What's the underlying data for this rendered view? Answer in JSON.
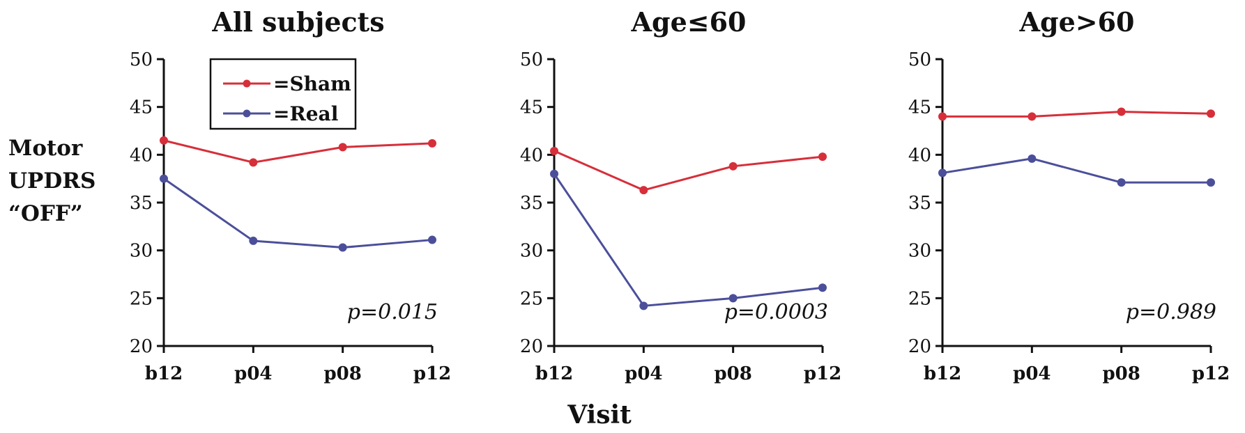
{
  "figure": {
    "ylabel_lines": [
      "Motor",
      "UPDRS",
      "“OFF”"
    ],
    "xlabel": "Visit"
  },
  "legend": [
    {
      "label": "=Sham",
      "color": "#d62f3a"
    },
    {
      "label": "=Real",
      "color": "#4b4f9a"
    }
  ],
  "chart_data": [
    {
      "type": "line",
      "title": "All subjects",
      "categories": [
        "b12",
        "p04",
        "p08",
        "p12"
      ],
      "ylim": [
        20,
        50
      ],
      "yticks": [
        20,
        25,
        30,
        35,
        40,
        45,
        50
      ],
      "annotation": "p=0.015",
      "series": [
        {
          "name": "=Sham",
          "color": "#d62f3a",
          "values": [
            41.5,
            39.2,
            40.8,
            41.2
          ]
        },
        {
          "name": "=Real",
          "color": "#4b4f9a",
          "values": [
            37.5,
            31.0,
            30.3,
            31.1
          ]
        }
      ]
    },
    {
      "type": "line",
      "title": "Age≤60",
      "categories": [
        "b12",
        "p04",
        "p08",
        "p12"
      ],
      "ylim": [
        20,
        50
      ],
      "yticks": [
        20,
        25,
        30,
        35,
        40,
        45,
        50
      ],
      "annotation": "p=0.0003",
      "series": [
        {
          "name": "=Sham",
          "color": "#d62f3a",
          "values": [
            40.4,
            36.3,
            38.8,
            39.8
          ]
        },
        {
          "name": "=Real",
          "color": "#4b4f9a",
          "values": [
            38.0,
            24.2,
            25.0,
            26.1
          ]
        }
      ]
    },
    {
      "type": "line",
      "title": "Age>60",
      "categories": [
        "b12",
        "p04",
        "p08",
        "p12"
      ],
      "ylim": [
        20,
        50
      ],
      "yticks": [
        20,
        25,
        30,
        35,
        40,
        45,
        50
      ],
      "annotation": "p=0.989",
      "series": [
        {
          "name": "=Sham",
          "color": "#d62f3a",
          "values": [
            44.0,
            44.0,
            44.5,
            44.3
          ]
        },
        {
          "name": "=Real",
          "color": "#4b4f9a",
          "values": [
            38.1,
            39.6,
            37.1,
            37.1
          ]
        }
      ]
    }
  ]
}
